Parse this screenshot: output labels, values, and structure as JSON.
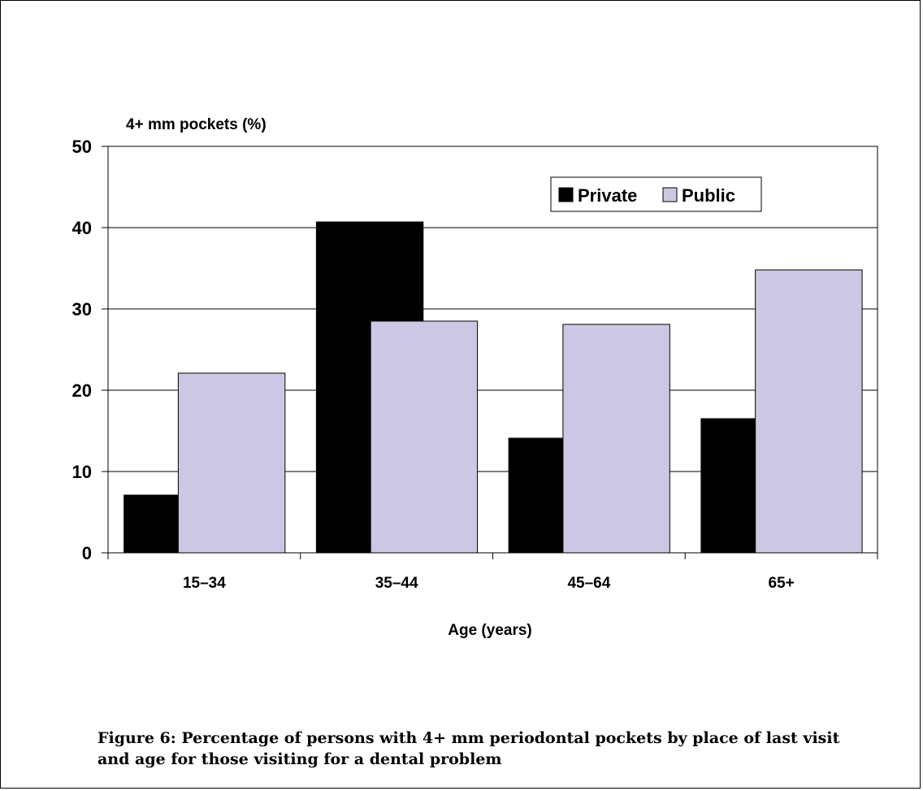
{
  "chart_data": {
    "type": "bar",
    "title": "",
    "ylabel": "4+ mm pockets (%)",
    "xlabel": "Age (years)",
    "categories": [
      "15–34",
      "35–44",
      "45–64",
      "65+"
    ],
    "series": [
      {
        "name": "Private",
        "color": "#000000",
        "values": [
          7.1,
          40.7,
          14.1,
          16.5
        ]
      },
      {
        "name": "Public",
        "color": "#CCC8E4",
        "values": [
          22.1,
          28.5,
          28.1,
          34.8
        ]
      }
    ],
    "ylim": [
      0,
      50
    ],
    "yticks": [
      "0",
      "10",
      "20",
      "30",
      "40",
      "50"
    ],
    "grid": true,
    "legend": "top-right"
  },
  "caption": {
    "line1": "Figure 6:  Percentage of persons with 4+ mm periodontal pockets by place of last visit",
    "line2": "and age for those visiting for a dental problem"
  }
}
